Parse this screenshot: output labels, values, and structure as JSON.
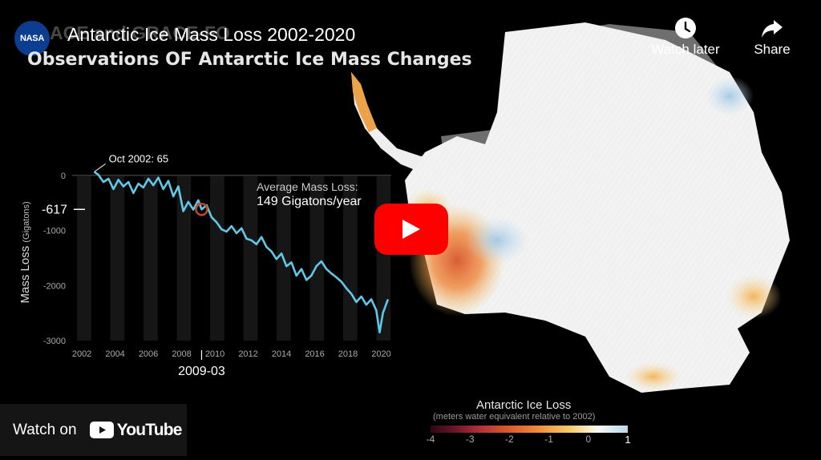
{
  "header": {
    "title": "Antarctic Ice Mass Loss 2002-2020",
    "faded_overlay_text": "ACE and GRACE-FO",
    "subtitle": "Observations OF Antarctic Ice Mass Changes",
    "logo_text": "NASA"
  },
  "top_actions": {
    "watch_later": "Watch later",
    "share": "Share"
  },
  "chart_data": {
    "type": "line",
    "ylabel": "Mass Loss",
    "ylabel_unit": "(Gigatons)",
    "ylim": [
      -3000,
      100
    ],
    "yticks": [
      "0",
      "-1000",
      "-2000",
      "-3000"
    ],
    "xlim": [
      2002,
      2020.5
    ],
    "xticks": [
      "2002",
      "2004",
      "2006",
      "2008",
      "2010",
      "2012",
      "2014",
      "2016",
      "2018",
      "2020"
    ],
    "start_annotation": "Oct 2002: 65",
    "marker_label": "2009-03",
    "marker_value_label": "-617",
    "marker_point": {
      "x": 2009.2,
      "y": -617
    },
    "average_label": "Average Mass Loss:",
    "average_value": "149 Gigatons/year",
    "series": [
      {
        "x": [
          2002.75,
          2003.0,
          2003.3,
          2003.6,
          2003.9,
          2004.2,
          2004.5,
          2004.8,
          2005.1,
          2005.4,
          2005.7,
          2006.0,
          2006.3,
          2006.6,
          2006.9,
          2007.2,
          2007.5,
          2007.8,
          2008.1,
          2008.4,
          2008.7,
          2009.0,
          2009.2,
          2009.5,
          2009.8,
          2010.1,
          2010.4,
          2010.7,
          2011.0,
          2011.3,
          2011.6,
          2011.9,
          2012.2,
          2012.5,
          2012.8,
          2013.1,
          2013.4,
          2013.7,
          2014.0,
          2014.3,
          2014.6,
          2014.9,
          2015.2,
          2015.5,
          2015.8,
          2016.1,
          2016.4,
          2016.7,
          2017.0,
          2017.3,
          2017.6,
          2017.9,
          2018.2,
          2018.5,
          2018.8,
          2019.1,
          2019.4,
          2019.7,
          2019.9,
          2020.1,
          2020.4
        ],
        "y": [
          65,
          10,
          -120,
          -60,
          -250,
          -80,
          -200,
          -120,
          -320,
          -150,
          -220,
          -60,
          -180,
          -40,
          -250,
          -100,
          -380,
          -200,
          -650,
          -480,
          -620,
          -450,
          -617,
          -540,
          -760,
          -850,
          -980,
          -1020,
          -920,
          -1050,
          -960,
          -1150,
          -1180,
          -1250,
          -1120,
          -1300,
          -1380,
          -1520,
          -1420,
          -1650,
          -1580,
          -1820,
          -1700,
          -1900,
          -1820,
          -1650,
          -1560,
          -1700,
          -1780,
          -1850,
          -1930,
          -2050,
          -2150,
          -2300,
          -2200,
          -2350,
          -2250,
          -2450,
          -2850,
          -2500,
          -2250
        ]
      }
    ]
  },
  "legend": {
    "title": "Antarctic Ice Loss",
    "subtitle": "(meters water equivalent relative to 2002)",
    "ticks": [
      "-4",
      "-3",
      "-2",
      "-1",
      "0",
      "1"
    ]
  },
  "player": {
    "play_label": "Play",
    "watch_on_label": "Watch on",
    "youtube_wordmark": "YouTube"
  },
  "colors": {
    "line": "#62c8e8",
    "marker": "#c3482b",
    "play_red": "#ff0000"
  }
}
